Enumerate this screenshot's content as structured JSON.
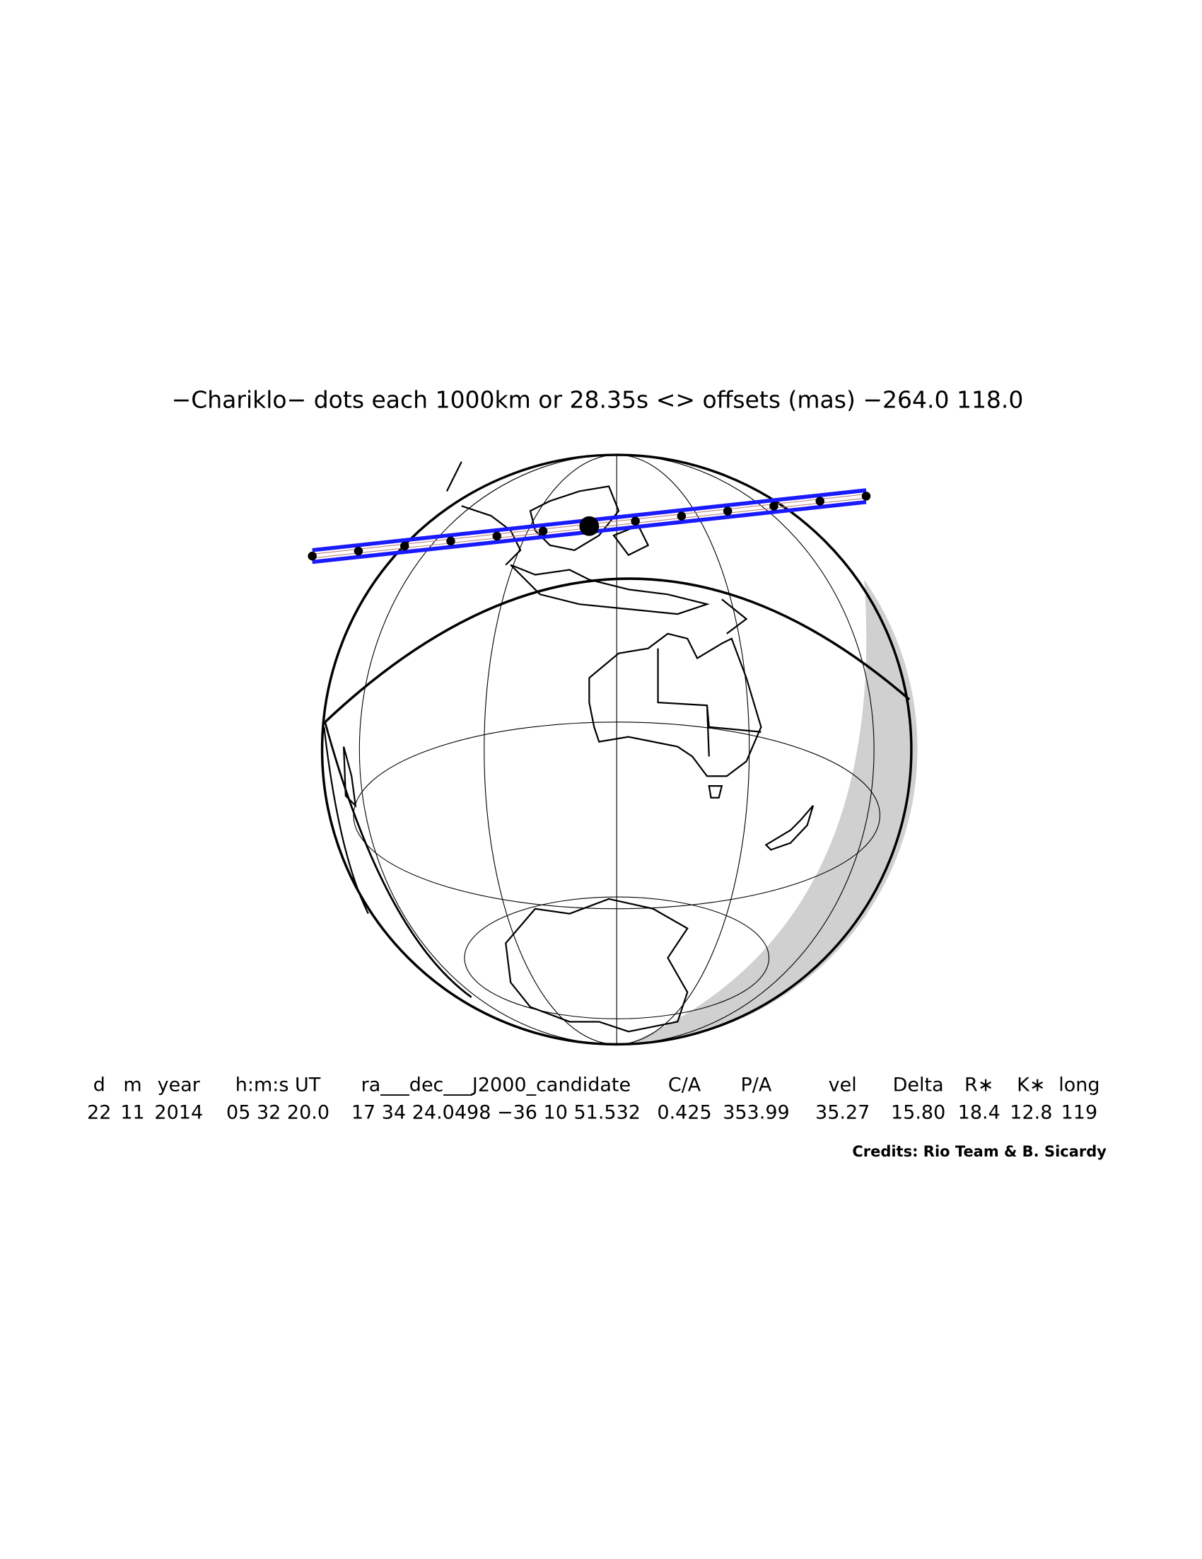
{
  "title": "−Chariklo− dots each 1000km or 28.35s <> offsets (mas) −264.0  118.0",
  "table": {
    "headers": [
      "d",
      "m",
      "year",
      "h:m:s UT",
      "ra___dec___J2000_candidate",
      "C/A",
      "P/A",
      "vel",
      "Delta",
      "R∗",
      "K∗",
      "long"
    ],
    "values": [
      "22",
      "11",
      "2014",
      "05 32 20.0",
      "17 34 24.0498 −36 10 51.532",
      "0.425",
      "353.99",
      "35.27",
      "15.80",
      "18.4",
      "12.8",
      "119"
    ]
  },
  "credits": "Credits: Rio Team & B. Sicardy"
}
